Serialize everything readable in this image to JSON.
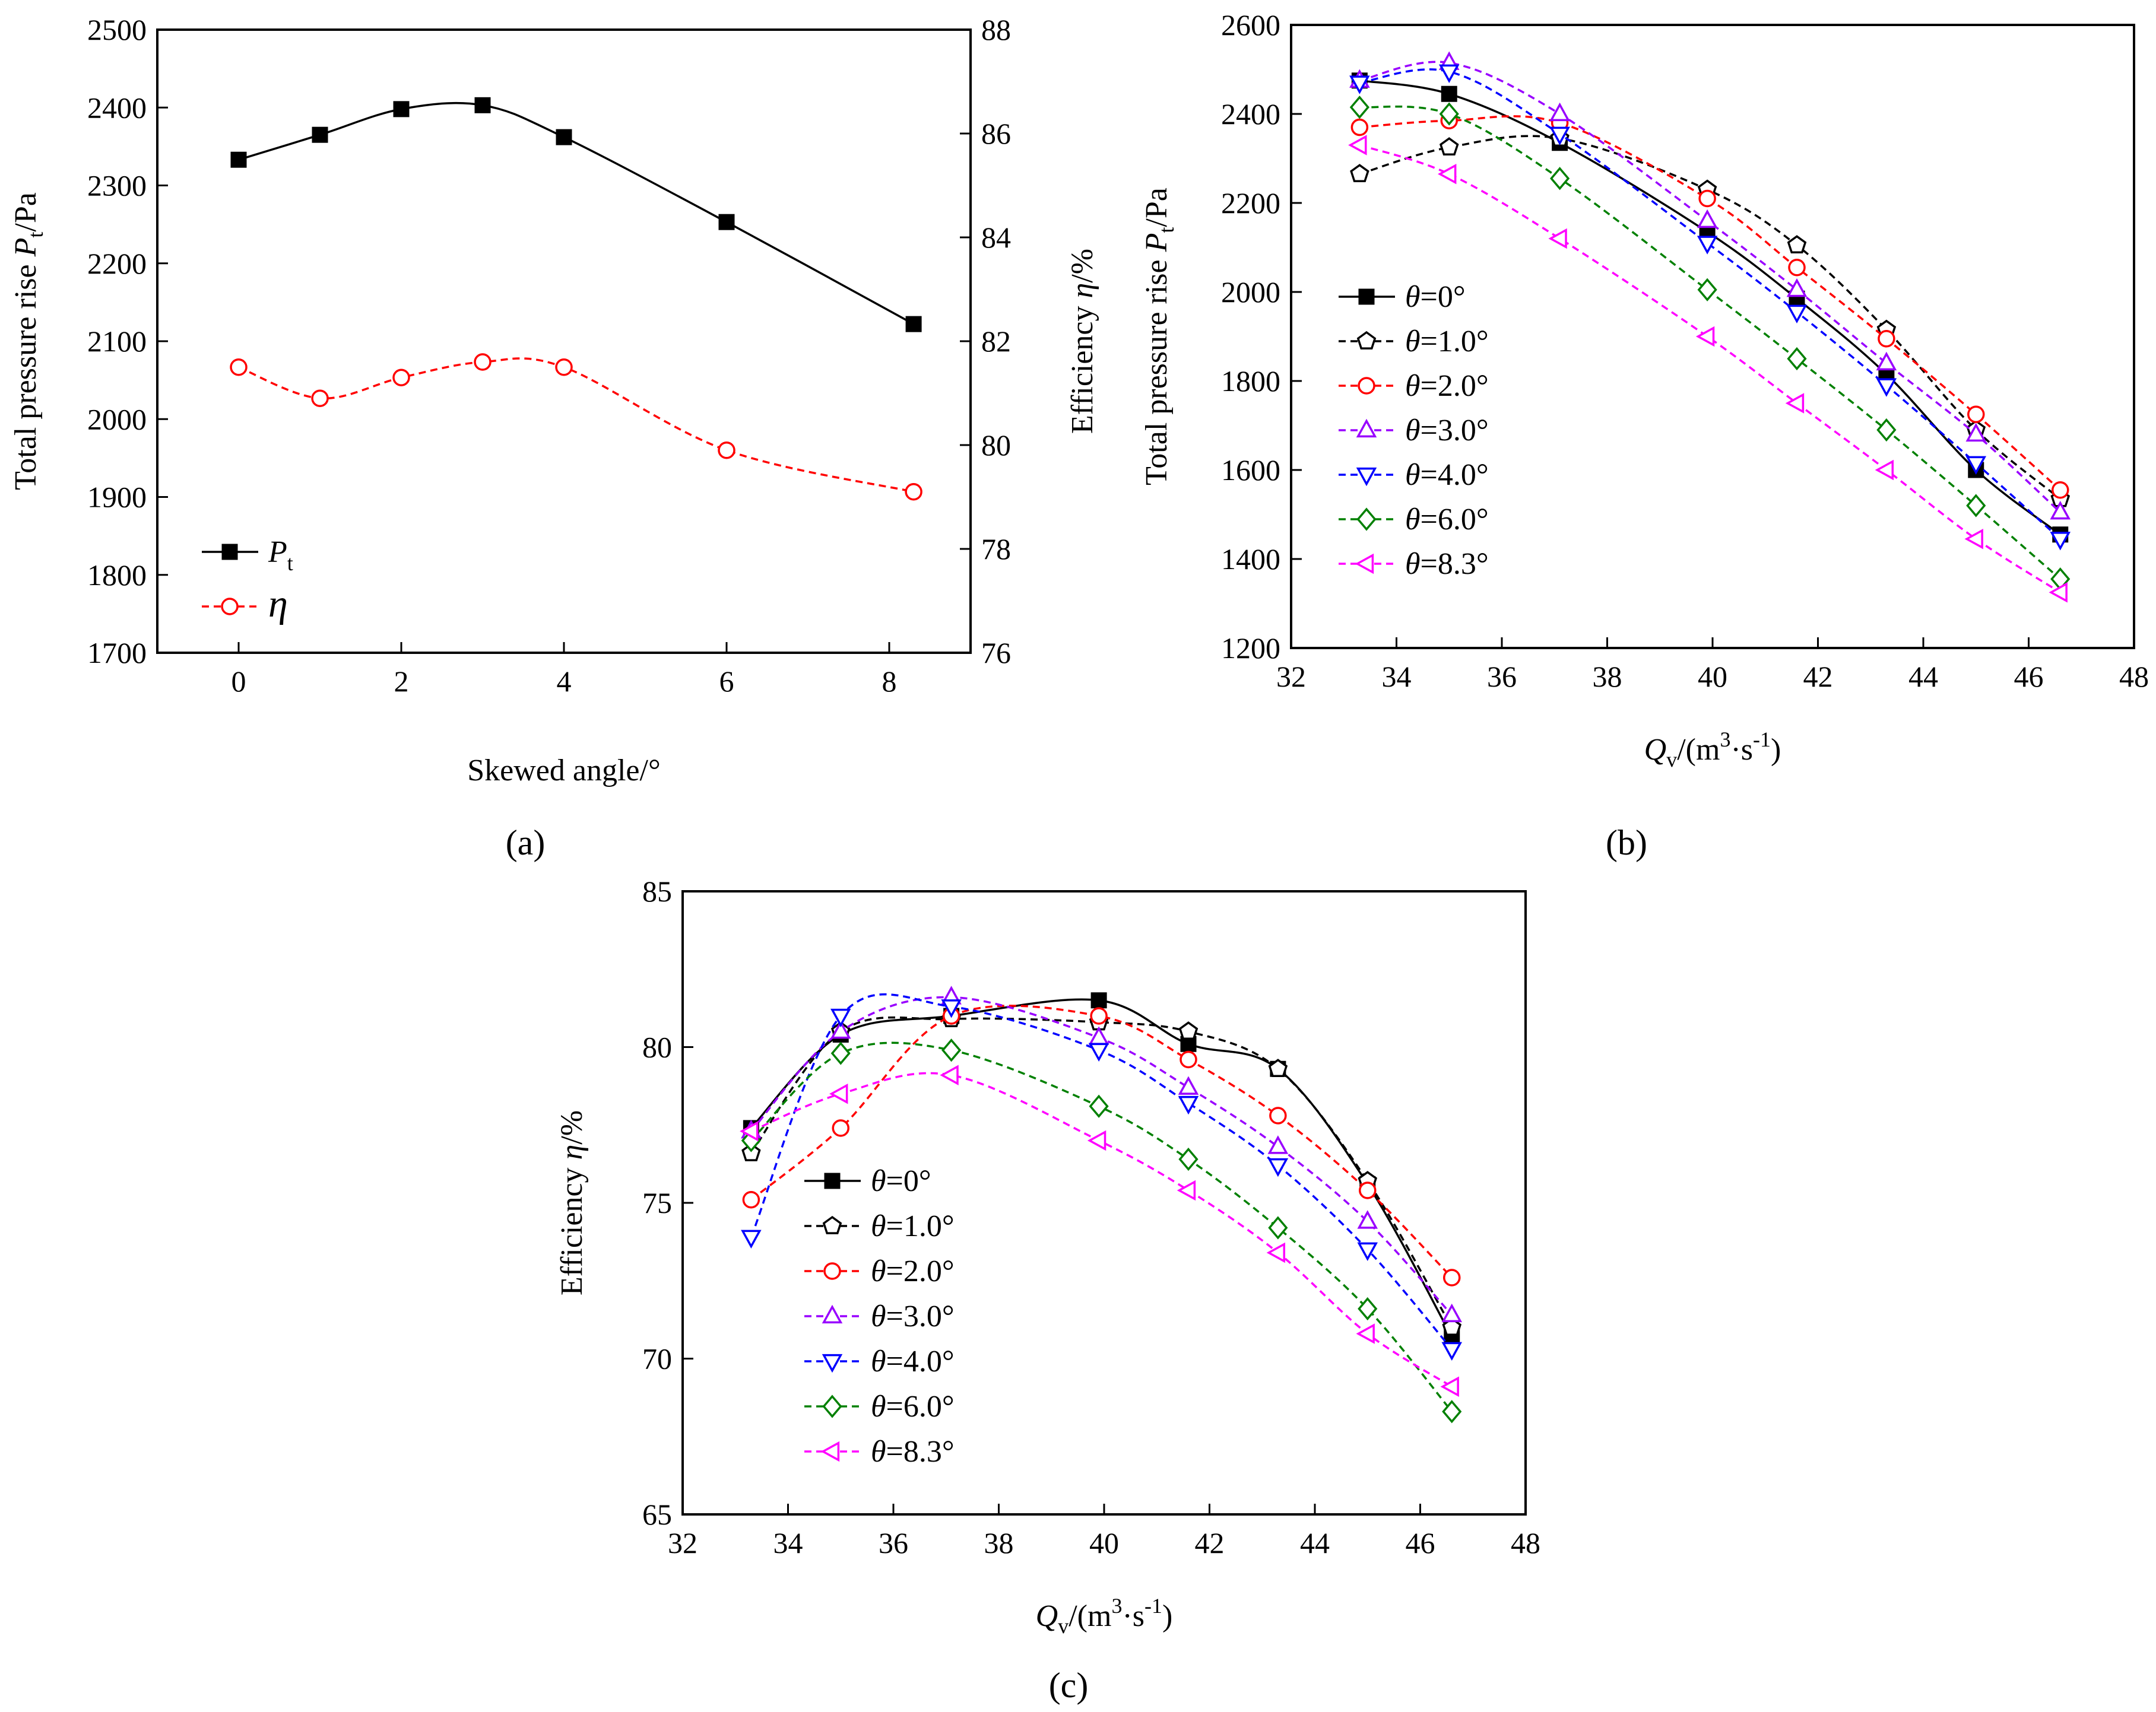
{
  "figure": {
    "panel_labels": [
      "(a)",
      "(b)",
      "(c)"
    ]
  },
  "chart_data": [
    {
      "id": "a",
      "type": "line",
      "title": "",
      "xlabel": "Skewed angle/°",
      "ylabel": "Total pressure rise Pt/Pa",
      "y2label": "Efficiency η/%",
      "xlim": [
        -1,
        9
      ],
      "ylim": [
        1700,
        2500
      ],
      "y2lim": [
        76,
        88
      ],
      "xticks": [
        0,
        2,
        4,
        6,
        8
      ],
      "yticks": [
        1700,
        1800,
        1900,
        2000,
        2100,
        2200,
        2300,
        2400,
        2500
      ],
      "y2ticks": [
        76,
        78,
        80,
        82,
        84,
        86,
        88
      ],
      "legend_position": "bottom-left",
      "series": [
        {
          "name": "Pt",
          "label_main": "P",
          "label_sub": "t",
          "axis": "left",
          "color": "#000000",
          "dash": "solid",
          "marker": "square-filled",
          "x": [
            0,
            1,
            2,
            3,
            4,
            6,
            8.3
          ],
          "y": [
            2333,
            2365,
            2398,
            2403,
            2362,
            2253,
            2122
          ]
        },
        {
          "name": "η",
          "label_main": "η",
          "label_sub": "",
          "axis": "right",
          "color": "#ff0000",
          "dash": "dashed",
          "marker": "circle",
          "x": [
            0,
            1,
            2,
            3,
            4,
            6,
            8.3
          ],
          "y": [
            81.5,
            80.9,
            81.3,
            81.6,
            81.5,
            79.9,
            79.1
          ]
        }
      ]
    },
    {
      "id": "b",
      "type": "line",
      "title": "",
      "xlabel": "Qv/(m³·s⁻¹)",
      "ylabel": "Total pressure rise Pt/Pa",
      "xlim": [
        32,
        48
      ],
      "ylim": [
        1200,
        2600
      ],
      "xticks": [
        32,
        34,
        36,
        38,
        40,
        42,
        44,
        46,
        48
      ],
      "yticks": [
        1200,
        1400,
        1600,
        1800,
        2000,
        2200,
        2400,
        2600
      ],
      "legend_position": "middle-left",
      "x": [
        33.3,
        35.0,
        37.1,
        39.9,
        41.6,
        43.3,
        45.0,
        46.6
      ],
      "series": [
        {
          "name": "θ=0°",
          "label_value": "=0°",
          "color": "#000000",
          "dash": "solid",
          "marker": "square-filled",
          "values": [
            2475,
            2445,
            2335,
            2135,
            1985,
            1815,
            1600,
            1455
          ]
        },
        {
          "name": "θ=1.0°",
          "label_value": "=1.0°",
          "color": "#000000",
          "dash": "dashed",
          "marker": "pentagon",
          "values": [
            2265,
            2325,
            2345,
            2230,
            2105,
            1915,
            1690,
            1535
          ]
        },
        {
          "name": "θ=2.0°",
          "label_value": "=2.0°",
          "color": "#ff0000",
          "dash": "dashed",
          "marker": "circle",
          "values": [
            2370,
            2385,
            2380,
            2210,
            2055,
            1895,
            1725,
            1555
          ]
        },
        {
          "name": "θ=3.0°",
          "label_value": "=3.0°",
          "color": "#9900ff",
          "dash": "dashed",
          "marker": "triangle-up",
          "values": [
            2475,
            2515,
            2400,
            2160,
            2005,
            1840,
            1680,
            1505
          ]
        },
        {
          "name": "θ=4.0°",
          "label_value": "=4.0°",
          "color": "#0000ff",
          "dash": "dashed",
          "marker": "triangle-down",
          "values": [
            2470,
            2495,
            2355,
            2110,
            1955,
            1790,
            1615,
            1445
          ]
        },
        {
          "name": "θ=6.0°",
          "label_value": "=6.0°",
          "color": "#008000",
          "dash": "dashed",
          "marker": "diamond",
          "values": [
            2415,
            2400,
            2255,
            2005,
            1850,
            1690,
            1520,
            1355
          ]
        },
        {
          "name": "θ=8.3°",
          "label_value": "=8.3°",
          "color": "#ff00ff",
          "dash": "dashed",
          "marker": "triangle-left",
          "values": [
            2330,
            2265,
            2120,
            1900,
            1750,
            1600,
            1445,
            1325
          ]
        }
      ]
    },
    {
      "id": "c",
      "type": "line",
      "title": "",
      "xlabel": "Qv/(m³·s⁻¹)",
      "ylabel": "Efficiency η/%",
      "xlim": [
        32,
        48
      ],
      "ylim": [
        65,
        85
      ],
      "xticks": [
        32,
        34,
        36,
        38,
        40,
        42,
        44,
        46,
        48
      ],
      "yticks": [
        65,
        70,
        75,
        80,
        85
      ],
      "legend_position": "bottom-left",
      "x": [
        33.3,
        35.0,
        37.1,
        39.9,
        41.6,
        43.3,
        45.0,
        46.6
      ],
      "series": [
        {
          "name": "θ=0°",
          "label_value": "=0°",
          "color": "#000000",
          "dash": "solid",
          "marker": "square-filled",
          "values": [
            77.4,
            80.4,
            81.0,
            81.5,
            80.1,
            79.3,
            75.6,
            70.7
          ]
        },
        {
          "name": "θ=1.0°",
          "label_value": "=1.0°",
          "color": "#000000",
          "dash": "dashed",
          "marker": "pentagon",
          "values": [
            76.6,
            80.5,
            80.9,
            80.8,
            80.5,
            79.3,
            75.7,
            71.0
          ]
        },
        {
          "name": "θ=2.0°",
          "label_value": "=2.0°",
          "color": "#ff0000",
          "dash": "dashed",
          "marker": "circle",
          "values": [
            75.1,
            77.4,
            81.0,
            81.0,
            79.6,
            77.8,
            75.4,
            72.6
          ]
        },
        {
          "name": "θ=3.0°",
          "label_value": "=3.0°",
          "color": "#9900ff",
          "dash": "dashed",
          "marker": "triangle-up",
          "values": [
            77.3,
            80.5,
            81.6,
            80.3,
            78.7,
            76.8,
            74.4,
            71.4
          ]
        },
        {
          "name": "θ=4.0°",
          "label_value": "=4.0°",
          "color": "#0000ff",
          "dash": "dashed",
          "marker": "triangle-down",
          "values": [
            73.9,
            81.0,
            81.3,
            79.9,
            78.2,
            76.2,
            73.5,
            70.3
          ]
        },
        {
          "name": "θ=6.0°",
          "label_value": "=6.0°",
          "color": "#008000",
          "dash": "dashed",
          "marker": "diamond",
          "values": [
            77.0,
            79.8,
            79.9,
            78.1,
            76.4,
            74.2,
            71.6,
            68.3
          ]
        },
        {
          "name": "θ=8.3°",
          "label_value": "=8.3°",
          "color": "#ff00ff",
          "dash": "dashed",
          "marker": "triangle-left",
          "values": [
            77.3,
            78.5,
            79.1,
            77.0,
            75.4,
            73.4,
            70.8,
            69.1
          ]
        }
      ]
    }
  ]
}
